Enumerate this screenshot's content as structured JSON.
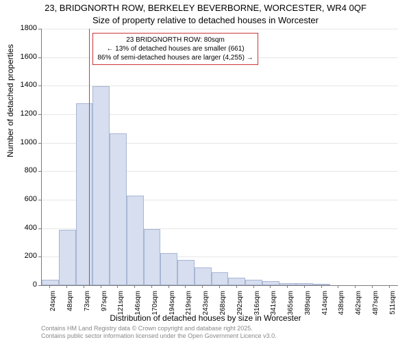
{
  "title_line1": "23, BRIDGNORTH ROW, BERKELEY BEVERBORNE, WORCESTER, WR4 0QF",
  "title_line2": "Size of property relative to detached houses in Worcester",
  "ylabel": "Number of detached properties",
  "xlabel": "Distribution of detached houses by size in Worcester",
  "footer_line1": "Contains HM Land Registry data © Crown copyright and database right 2025.",
  "footer_line2": "Contains public sector information licensed under the Open Government Licence v3.0.",
  "annotation": {
    "line1": "23 BRIDGNORTH ROW: 80sqm",
    "line2": "← 13% of detached houses are smaller (661)",
    "line3": "86% of semi-detached houses are larger (4,255) →"
  },
  "chart": {
    "type": "histogram",
    "background_color": "#ffffff",
    "grid_color": "#e6e6e6",
    "axis_color": "#7a7a7a",
    "bar_fill": "#d6deef",
    "bar_border": "#a8b6d4",
    "marker_color": "#e03030",
    "annotation_border": "#cc3333",
    "ylim": [
      0,
      1800
    ],
    "ytick_step": 200,
    "yticks": [
      0,
      200,
      400,
      600,
      800,
      1000,
      1200,
      1400,
      1600,
      1800
    ],
    "xticks": [
      "24sqm",
      "48sqm",
      "73sqm",
      "97sqm",
      "121sqm",
      "146sqm",
      "170sqm",
      "194sqm",
      "219sqm",
      "243sqm",
      "268sqm",
      "292sqm",
      "316sqm",
      "341sqm",
      "365sqm",
      "389sqm",
      "414sqm",
      "438sqm",
      "462sqm",
      "487sqm",
      "511sqm"
    ],
    "values": [
      40,
      390,
      1275,
      1395,
      1065,
      630,
      395,
      225,
      180,
      125,
      90,
      55,
      40,
      30,
      15,
      15,
      10,
      0,
      0,
      0,
      0
    ],
    "marker_value_index": 2.3,
    "title_fontsize": 13,
    "label_fontsize": 12,
    "tick_fontsize": 11,
    "xtick_fontsize": 10,
    "footer_fontsize": 9,
    "footer_color": "#888888",
    "bar_width_ratio": 1.0
  }
}
